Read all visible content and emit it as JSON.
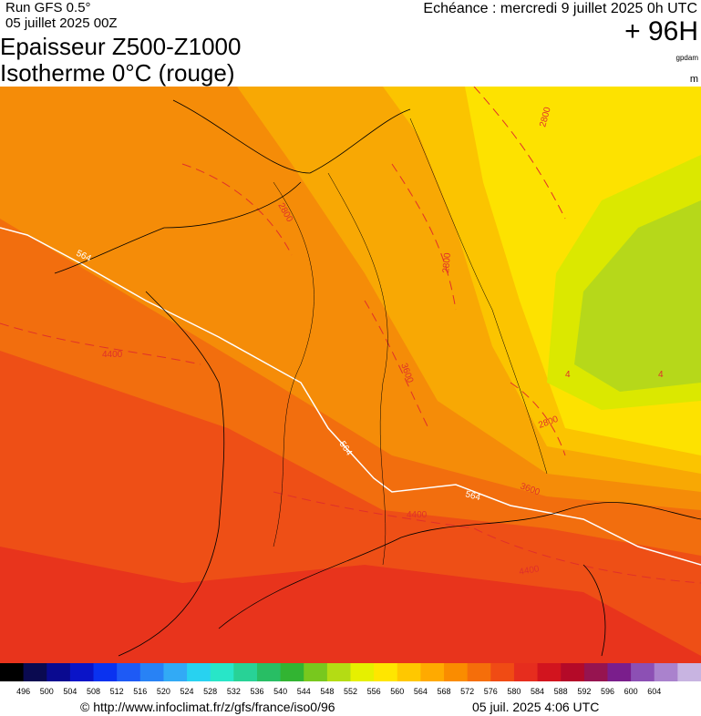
{
  "header": {
    "run": "Run GFS 0.5°",
    "date": "05 juillet 2025 00Z",
    "title": "Epaisseur Z500-Z1000",
    "subtitle": "Isotherme 0°C (rouge)",
    "valid": "Echéance : mercredi 9 juillet 2025 0h UTC",
    "lead": "+ 96H",
    "unit": "gpdam",
    "unit2": "m"
  },
  "map": {
    "labels": [
      "564",
      "564",
      "564",
      "4400",
      "4400",
      "4400",
      "2800",
      "2800",
      "2800",
      "2800",
      "3600",
      "3600",
      "4",
      "4"
    ]
  },
  "legend": {
    "labels": [
      496,
      500,
      504,
      508,
      512,
      516,
      520,
      524,
      528,
      532,
      536,
      540,
      544,
      548,
      552,
      556,
      560,
      564,
      568,
      572,
      576,
      580,
      584,
      588,
      592,
      596,
      600,
      604
    ],
    "colors": [
      "#000000",
      "#0a0a50",
      "#0a0a90",
      "#0a14c8",
      "#0a32f0",
      "#1e5af5",
      "#2882f5",
      "#32aaf5",
      "#28d2f0",
      "#28e6c8",
      "#28d296",
      "#28be64",
      "#32b432",
      "#78c81e",
      "#b4dc14",
      "#e6f000",
      "#ffe600",
      "#ffc800",
      "#ffaa00",
      "#fa8c00",
      "#f56e0a",
      "#f04b14",
      "#e62d1e",
      "#d2141e",
      "#b40a28",
      "#961450",
      "#7a1e8c",
      "#8c50b4",
      "#aa82cd",
      "#c8b4e1"
    ]
  },
  "footer": {
    "url": "© http://www.infoclimat.fr/z/gfs/france/iso0/96",
    "time": "05 juil. 2025  4:06 UTC"
  }
}
